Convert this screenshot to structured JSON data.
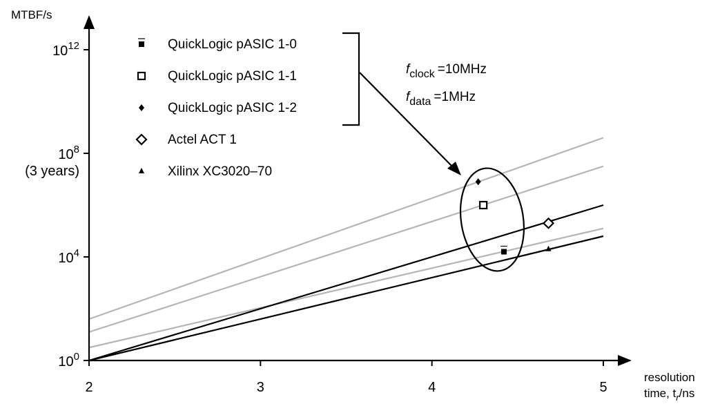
{
  "chart_data": {
    "type": "line",
    "title": "",
    "ylabel": "MTBF/s",
    "xlabel_line1": "resolution",
    "xlabel_line2": "time, t",
    "xlabel_sub": "r",
    "xlabel_unit": "/ns",
    "y_scale": "log10",
    "xlim": [
      2,
      5
    ],
    "ylim_log10": [
      0,
      12
    ],
    "x_ticks": [
      {
        "value": 2,
        "label": "2"
      },
      {
        "value": 3,
        "label": "3"
      },
      {
        "value": 4,
        "label": "4"
      },
      {
        "value": 5,
        "label": "5"
      }
    ],
    "y_ticks": [
      {
        "log10": 0,
        "base": "10",
        "exp": "0",
        "note": ""
      },
      {
        "log10": 4,
        "base": "10",
        "exp": "4",
        "note": ""
      },
      {
        "log10": 8,
        "base": "10",
        "exp": "8",
        "note": "(3 years)"
      },
      {
        "log10": 12,
        "base": "10",
        "exp": "12",
        "note": ""
      }
    ],
    "lines": [
      {
        "color": "#b5b5b5",
        "points": [
          [
            2,
            1.6
          ],
          [
            5,
            8.6
          ]
        ]
      },
      {
        "color": "#b5b5b5",
        "points": [
          [
            2,
            1.1
          ],
          [
            5,
            7.5
          ]
        ]
      },
      {
        "color": "#b5b5b5",
        "points": [
          [
            2,
            0.5
          ],
          [
            5,
            5.1
          ]
        ]
      },
      {
        "color": "#000000",
        "points": [
          [
            2,
            0
          ],
          [
            5,
            6.0
          ]
        ]
      },
      {
        "color": "#000000",
        "points": [
          [
            2,
            0
          ],
          [
            5,
            4.8
          ]
        ]
      }
    ],
    "points": [
      {
        "series": "QuickLogic pASIC 1-0",
        "marker": "filled-square",
        "x": 4.42,
        "y_log10": 4.2
      },
      {
        "series": "QuickLogic pASIC 1-1",
        "marker": "open-square",
        "x": 4.3,
        "y_log10": 6.0
      },
      {
        "series": "QuickLogic pASIC 1-2",
        "marker": "filled-diamond",
        "x": 4.27,
        "y_log10": 6.9
      },
      {
        "series": "Actel ACT 1",
        "marker": "open-diamond",
        "x": 4.68,
        "y_log10": 5.3
      },
      {
        "series": "Xilinx XC3020–70",
        "marker": "filled-triangle",
        "x": 4.68,
        "y_log10": 4.3
      }
    ],
    "legend": {
      "placement": "top-left",
      "entries": [
        {
          "label": "QuickLogic pASIC 1-0",
          "marker": "filled-square"
        },
        {
          "label": "QuickLogic pASIC 1-1",
          "marker": "open-square"
        },
        {
          "label": "QuickLogic pASIC 1-2",
          "marker": "filled-diamond"
        },
        {
          "label": "Actel ACT 1",
          "marker": "open-diamond"
        },
        {
          "label": "Xilinx XC3020–70",
          "marker": "filled-triangle"
        }
      ]
    },
    "annotations": {
      "clock": {
        "symbol": "f",
        "sub": "clock",
        "value": "=10MHz"
      },
      "data": {
        "symbol": "f",
        "sub": "data",
        "value": "=1MHz"
      }
    }
  }
}
